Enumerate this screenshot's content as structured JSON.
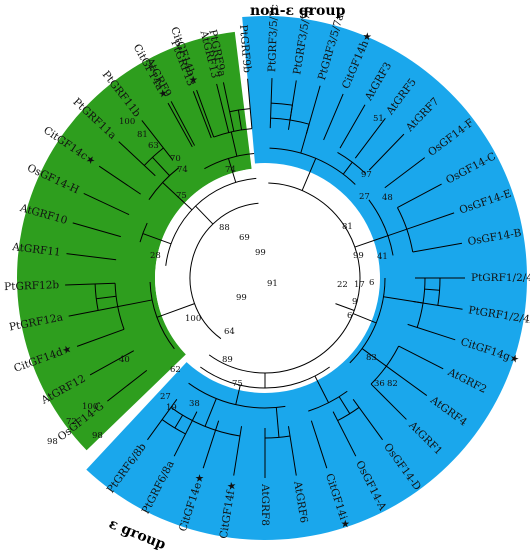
{
  "groups": {
    "non_epsilon": {
      "label": "non-ε group",
      "color": "#1aa7ec"
    },
    "epsilon": {
      "label": "ε group",
      "color": "#2e9e1e"
    }
  },
  "leaves": [
    {
      "id": "l0",
      "label": "PtGRF3/5/7c",
      "angle": -88,
      "group": "non_epsilon"
    },
    {
      "id": "l1",
      "label": "PtGRF3/5/7b",
      "angle": -81,
      "group": "non_epsilon"
    },
    {
      "id": "l2",
      "label": "PtGRF3/5/7a",
      "angle": -74,
      "group": "non_epsilon"
    },
    {
      "id": "l3",
      "label": "CitGF14h★",
      "angle": -67,
      "group": "non_epsilon"
    },
    {
      "id": "l4",
      "label": "AtGRF3",
      "angle": -60,
      "group": "non_epsilon"
    },
    {
      "id": "l5",
      "label": "AtGRF5",
      "angle": -53,
      "group": "non_epsilon"
    },
    {
      "id": "l6",
      "label": "AtGRF7",
      "angle": -46,
      "group": "non_epsilon"
    },
    {
      "id": "l7",
      "label": "OsGF14-F",
      "angle": -37,
      "group": "non_epsilon"
    },
    {
      "id": "l8",
      "label": "OsGF14-C",
      "angle": -28,
      "group": "non_epsilon"
    },
    {
      "id": "l9",
      "label": "OsGF14-E",
      "angle": -19,
      "group": "non_epsilon"
    },
    {
      "id": "l10",
      "label": "OsGF14-B",
      "angle": -10,
      "group": "non_epsilon"
    },
    {
      "id": "l11",
      "label": "PtGRF1/2/4a",
      "angle": 0,
      "group": "non_epsilon"
    },
    {
      "id": "l12",
      "label": "PtGRF1/2/4b",
      "angle": 9,
      "group": "non_epsilon"
    },
    {
      "id": "l13",
      "label": "CitGF14g★",
      "angle": 18,
      "group": "non_epsilon"
    },
    {
      "id": "l14",
      "label": "AtGRF2",
      "angle": 27,
      "group": "non_epsilon"
    },
    {
      "id": "l15",
      "label": "AtGRF4",
      "angle": 36,
      "group": "non_epsilon"
    },
    {
      "id": "l16",
      "label": "AtGRF1",
      "angle": 45,
      "group": "non_epsilon"
    },
    {
      "id": "l17",
      "label": "OsGF14-D",
      "angle": 54,
      "group": "non_epsilon"
    },
    {
      "id": "l18",
      "label": "OsGF14-A",
      "angle": 63,
      "group": "non_epsilon"
    },
    {
      "id": "l19",
      "label": "CitGF14i★",
      "angle": 72,
      "group": "non_epsilon"
    },
    {
      "id": "l20",
      "label": "AtGRF6",
      "angle": 81,
      "group": "non_epsilon"
    },
    {
      "id": "l21",
      "label": "AtGRF8",
      "angle": 90,
      "group": "non_epsilon"
    },
    {
      "id": "l22",
      "label": "CitGF14f★",
      "angle": 99,
      "group": "non_epsilon"
    },
    {
      "id": "l23",
      "label": "CitGF14e★",
      "angle": 108,
      "group": "non_epsilon"
    },
    {
      "id": "l24",
      "label": "PtGRF6/8a",
      "angle": 117,
      "group": "non_epsilon"
    },
    {
      "id": "l25",
      "label": "PtGRF6/8b",
      "angle": 126,
      "group": "non_epsilon"
    },
    {
      "id": "l26",
      "label": "OsGF14-G",
      "angle": 142,
      "group": "epsilon"
    },
    {
      "id": "l27",
      "label": "AtGRF12",
      "angle": 151,
      "group": "epsilon"
    },
    {
      "id": "l28",
      "label": "CitGF14d★",
      "angle": 160,
      "group": "epsilon"
    },
    {
      "id": "l29",
      "label": "PtGRF12a",
      "angle": 169,
      "group": "epsilon"
    },
    {
      "id": "l30",
      "label": "PtGRF12b",
      "angle": 178,
      "group": "epsilon"
    },
    {
      "id": "l31",
      "label": "AtGRF11",
      "angle": 187,
      "group": "epsilon"
    },
    {
      "id": "l32",
      "label": "AtGRF10",
      "angle": 196,
      "group": "epsilon"
    },
    {
      "id": "l33",
      "label": "OsGF14-H",
      "angle": 205,
      "group": "epsilon"
    },
    {
      "id": "l34",
      "label": "CitGF14c★",
      "angle": 214,
      "group": "epsilon"
    },
    {
      "id": "l35",
      "label": "PtGRF11a",
      "angle": 223,
      "group": "epsilon"
    },
    {
      "id": "l36",
      "label": "PtGRF11b",
      "angle": 232,
      "group": "epsilon"
    },
    {
      "id": "l37",
      "label": "CitGF14a★",
      "angle": 241,
      "group": "epsilon"
    },
    {
      "id": "l38",
      "label": "CitGF14b★",
      "angle": 250,
      "group": "epsilon"
    },
    {
      "id": "l39",
      "label": "PtGRF9a",
      "angle": 258,
      "group": "epsilon"
    },
    {
      "id": "l40",
      "label": "PtGRF9b",
      "angle": 265,
      "group": "epsilon"
    },
    {
      "id": "l41",
      "label": "AtGRF9",
      "angle": 242,
      "group": "epsilon"
    },
    {
      "id": "l42",
      "label": "PtGRF13",
      "angle": 249,
      "group": "epsilon"
    },
    {
      "id": "l43",
      "label": "AtGRF13",
      "angle": 256,
      "group": "epsilon"
    }
  ],
  "branch_support": [
    {
      "id": "b1",
      "text": "100"
    },
    {
      "id": "b2",
      "text": "81"
    },
    {
      "id": "b3",
      "text": "63"
    },
    {
      "id": "b4",
      "text": "70"
    },
    {
      "id": "b5",
      "text": "74"
    },
    {
      "id": "b6",
      "text": "74"
    },
    {
      "id": "b7",
      "text": "75"
    },
    {
      "id": "b8",
      "text": "88"
    },
    {
      "id": "b9",
      "text": "69"
    },
    {
      "id": "b10",
      "text": "99"
    },
    {
      "id": "b11",
      "text": "28"
    },
    {
      "id": "b12",
      "text": "91"
    },
    {
      "id": "b13",
      "text": "99"
    },
    {
      "id": "b14",
      "text": "100"
    },
    {
      "id": "b15",
      "text": "64"
    },
    {
      "id": "b16",
      "text": "89"
    },
    {
      "id": "b17",
      "text": "75"
    },
    {
      "id": "b18",
      "text": "38"
    },
    {
      "id": "b19",
      "text": "19"
    },
    {
      "id": "b20",
      "text": "27"
    },
    {
      "id": "b21",
      "text": "62"
    },
    {
      "id": "b22",
      "text": "100"
    },
    {
      "id": "b23",
      "text": "72"
    },
    {
      "id": "b24",
      "text": "98"
    },
    {
      "id": "b25",
      "text": "98"
    },
    {
      "id": "b26",
      "text": "40"
    },
    {
      "id": "b27",
      "text": "36"
    },
    {
      "id": "b28",
      "text": "83"
    },
    {
      "id": "b29",
      "text": "82"
    },
    {
      "id": "b30",
      "text": "6"
    },
    {
      "id": "b31",
      "text": "9"
    },
    {
      "id": "b32",
      "text": "22"
    },
    {
      "id": "b33",
      "text": "17"
    },
    {
      "id": "b34",
      "text": "99"
    },
    {
      "id": "b35",
      "text": "81"
    },
    {
      "id": "b36",
      "text": "6"
    },
    {
      "id": "b37",
      "text": "48"
    },
    {
      "id": "b38",
      "text": "27"
    },
    {
      "id": "b39",
      "text": "97"
    },
    {
      "id": "b40",
      "text": "41"
    },
    {
      "id": "b41",
      "text": "51"
    }
  ]
}
